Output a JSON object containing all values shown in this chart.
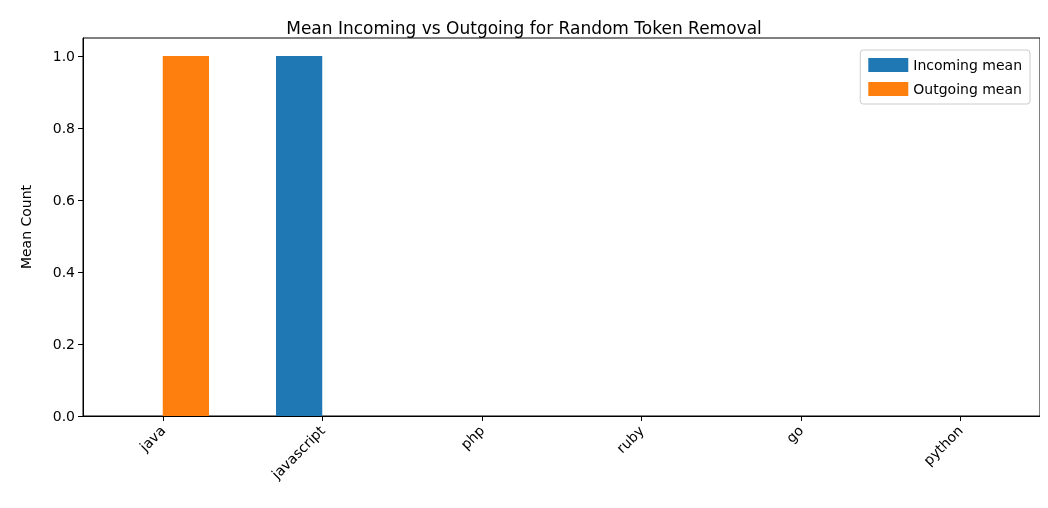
{
  "chart_data": {
    "type": "bar",
    "title": "Mean Incoming vs Outgoing for Random Token Removal",
    "ylabel": "Mean Count",
    "categories": [
      "java",
      "javascript",
      "php",
      "ruby",
      "go",
      "python"
    ],
    "series": [
      {
        "name": "Incoming mean",
        "color": "#1f77b4",
        "values": [
          0,
          1,
          0,
          0,
          0,
          0
        ]
      },
      {
        "name": "Outgoing mean",
        "color": "#ff7f0e",
        "values": [
          1,
          0,
          0,
          0,
          0,
          0
        ]
      }
    ],
    "ylim": [
      0,
      1.05
    ],
    "yticks": [
      {
        "value": 0,
        "label": "0.0"
      },
      0.2,
      0.4,
      0.6,
      0.8,
      {
        "value": 1,
        "label": "1.0"
      }
    ],
    "grid": false,
    "legend": "top right"
  }
}
